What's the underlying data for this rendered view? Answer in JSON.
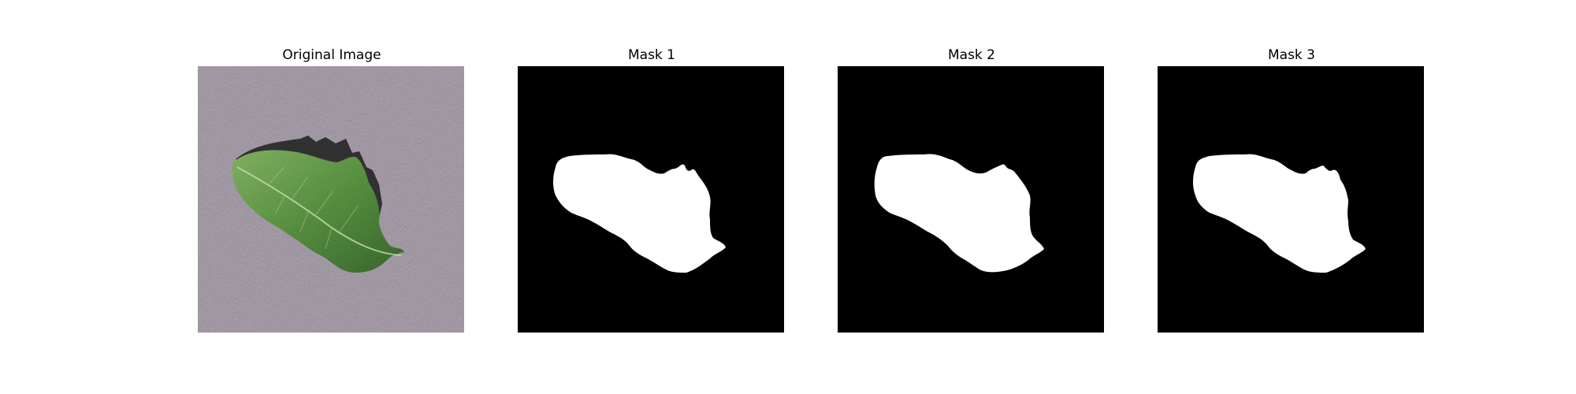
{
  "panels": [
    {
      "title": "Original Image",
      "kind": "photo"
    },
    {
      "title": "Mask 1",
      "kind": "mask"
    },
    {
      "title": "Mask 2",
      "kind": "mask"
    },
    {
      "title": "Mask 3",
      "kind": "mask"
    }
  ],
  "colors": {
    "background": "#ffffff",
    "mask_background": "#000000",
    "mask_foreground": "#ffffff",
    "photo_background": "#a99fac",
    "leaf_dark": "#2f5f22",
    "leaf_light": "#6fa351",
    "leaf_shadow": "#1a1a1a"
  }
}
